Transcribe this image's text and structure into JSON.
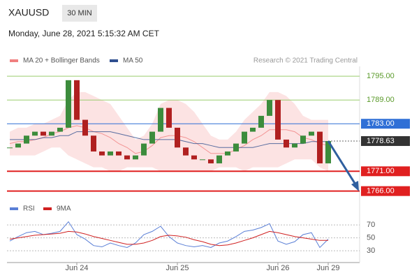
{
  "header": {
    "symbol": "XAUUSD",
    "timeframe": "30 MIN",
    "timestamp": "Monday, June 28, 2021 5:15:32 AM CET"
  },
  "chart_data": [
    {
      "type": "candlestick",
      "copyright": "Research © 2021 Trading Central",
      "closes": [
        1777,
        1778,
        1780,
        1781,
        1780,
        1781,
        1782,
        1794,
        1784,
        1780,
        1776,
        1775,
        1776,
        1775,
        1774,
        1775,
        1778,
        1781,
        1787,
        1782,
        1777,
        1775,
        1774,
        1774,
        1773,
        1775,
        1776,
        1778,
        1781,
        1782,
        1785,
        1789,
        1779,
        1777,
        1778,
        1780,
        1781,
        1773,
        1778.63
      ],
      "up_color": "#3c8c3c",
      "down_color": "#b02020",
      "series": [
        {
          "name": "MA 20 + Bollinger Bands",
          "color": "#f08080",
          "values": [
            1778,
            1778.5,
            1778.5,
            1779,
            1779.5,
            1780.5,
            1781,
            1782,
            1782.5,
            1782,
            1781,
            1780.5,
            1779.5,
            1778,
            1777,
            1775.5,
            1776,
            1777.5,
            1779.5,
            1780,
            1780,
            1779.5,
            1778.5,
            1777,
            1775.5,
            1775.5,
            1775.5,
            1776.5,
            1777.5,
            1779,
            1780,
            1781.5,
            1781.5,
            1781.5,
            1781,
            1779.5,
            1779,
            1778,
            1777.5
          ],
          "upper": [
            1781,
            1782,
            1782,
            1783,
            1783,
            1784,
            1785,
            1789,
            1791,
            1791,
            1790,
            1789,
            1788,
            1785,
            1782,
            1779,
            1780,
            1783,
            1788,
            1789,
            1789,
            1788,
            1786,
            1783,
            1780,
            1779,
            1779,
            1781,
            1784,
            1786,
            1788,
            1791,
            1791,
            1790,
            1788,
            1785,
            1784,
            1784,
            1784
          ],
          "lower": [
            1775,
            1775,
            1775,
            1775,
            1776,
            1777,
            1777,
            1775,
            1774,
            1773,
            1772,
            1772,
            1771,
            1771,
            1772,
            1772,
            1772,
            1772,
            1771,
            1771,
            1771,
            1771,
            1771,
            1771,
            1771,
            1772,
            1772,
            1772,
            1771,
            1772,
            1772,
            1772,
            1772,
            1773,
            1774,
            1774,
            1774,
            1772,
            1771
          ]
        },
        {
          "name": "MA 50",
          "color": "#2f4f8f",
          "values": [
            1779,
            1779,
            1779,
            1779,
            1779.5,
            1779.5,
            1780,
            1780,
            1781,
            1781,
            1781,
            1781,
            1781,
            1780.5,
            1780,
            1779.5,
            1779,
            1779,
            1779,
            1779,
            1779,
            1778.5,
            1778,
            1778,
            1777.5,
            1777,
            1777,
            1777,
            1777,
            1777,
            1777.5,
            1778,
            1778,
            1778,
            1778,
            1778,
            1778.5,
            1778.5,
            1778.5
          ]
        }
      ],
      "ylim": [
        1764,
        1797.5
      ],
      "yticks": [
        {
          "value": 1795,
          "label": "1795.00"
        },
        {
          "value": 1789,
          "label": "1789.00"
        },
        {
          "value": 1783,
          "label": "1783.00"
        },
        {
          "value": 1771,
          "label": "1771.00"
        },
        {
          "value": 1766,
          "label": "1766.00"
        }
      ],
      "level_colors": [
        "#9acd6e",
        "#9acd6e",
        "#2f6fd6",
        "#e02020",
        "#e02020"
      ],
      "level_boxed": [
        false,
        false,
        true,
        true,
        true
      ],
      "last_price": 1778.63,
      "last_color": "#333333"
    },
    {
      "type": "line",
      "series": [
        {
          "name": "RSI",
          "color": "#5a7fd6",
          "values": [
            45,
            52,
            58,
            60,
            55,
            57,
            60,
            75,
            55,
            48,
            38,
            36,
            42,
            38,
            35,
            42,
            55,
            60,
            68,
            52,
            42,
            38,
            36,
            38,
            35,
            42,
            45,
            52,
            60,
            62,
            66,
            72,
            45,
            40,
            44,
            55,
            58,
            35,
            48
          ]
        },
        {
          "name": "9MA",
          "color": "#d02020",
          "values": [
            48,
            50,
            52,
            54,
            55,
            56,
            57,
            60,
            59,
            56,
            52,
            49,
            46,
            43,
            40,
            40,
            42,
            46,
            52,
            54,
            53,
            51,
            47,
            44,
            40,
            38,
            39,
            42,
            46,
            50,
            55,
            60,
            58,
            55,
            52,
            50,
            48,
            46,
            46
          ]
        }
      ],
      "ylim": [
        16,
        81
      ],
      "yticks": [
        70,
        50,
        30
      ],
      "x_labels": [
        "Jun 24",
        "Jun 25",
        "Jun 26",
        "Jun 29"
      ]
    }
  ]
}
